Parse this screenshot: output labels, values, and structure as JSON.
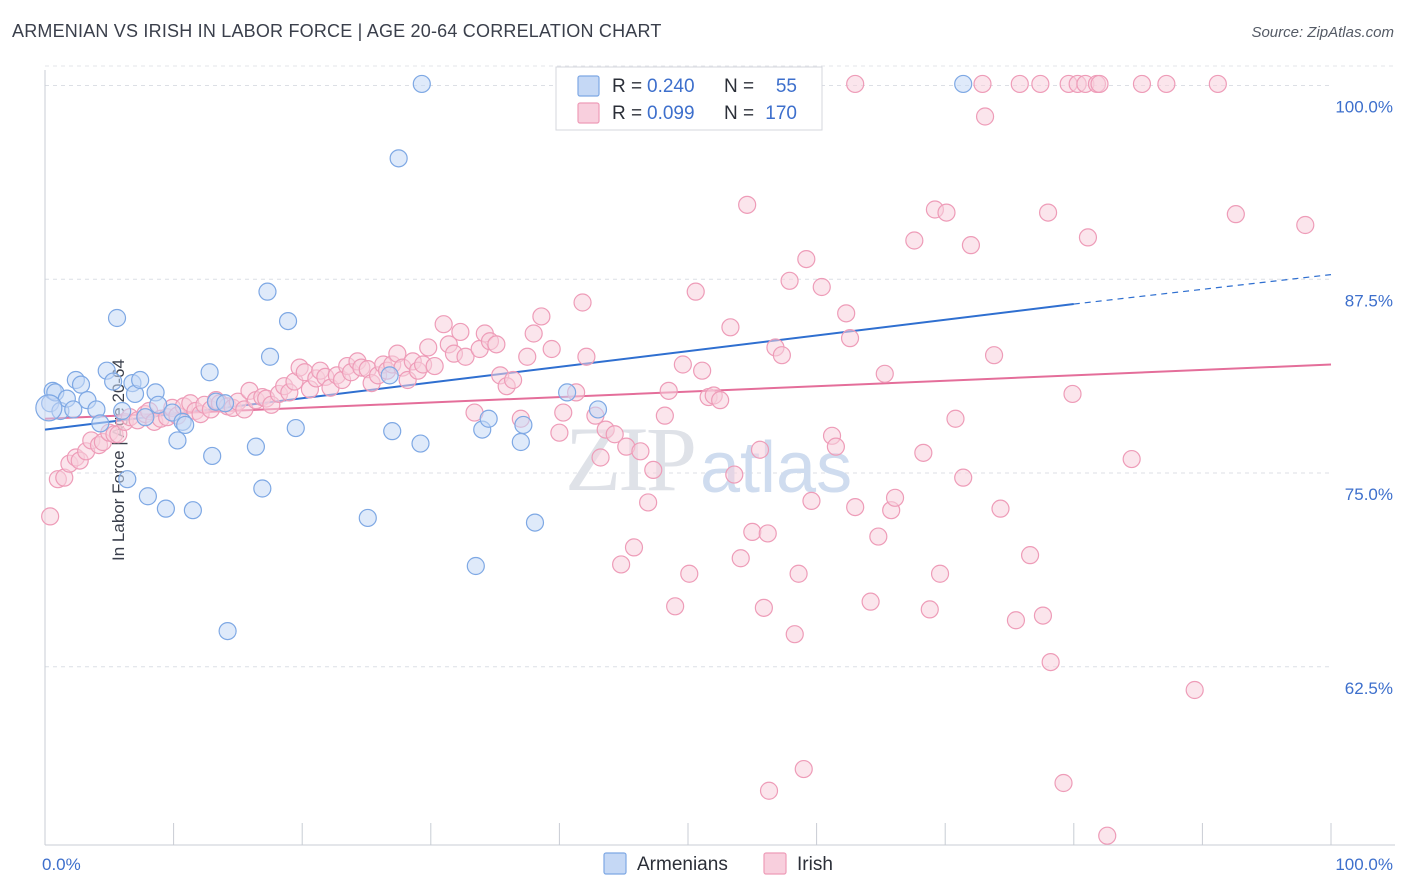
{
  "header": {
    "title": "ARMENIAN VS IRISH IN LABOR FORCE | AGE 20-64 CORRELATION CHART",
    "source": "Source: ZipAtlas.com"
  },
  "watermark": "ZIPatlas",
  "chart_data": {
    "type": "scatter",
    "title": "ARMENIAN VS IRISH IN LABOR FORCE | AGE 20-64 CORRELATION CHART",
    "xlabel": "",
    "ylabel": "In Labor Force | Age 20-64",
    "xlim": [
      0,
      100
    ],
    "ylim": [
      51,
      101
    ],
    "x_tick_labels": [
      "0.0%",
      "100.0%"
    ],
    "y_ticks": [
      62.5,
      75.0,
      87.5,
      100.0
    ],
    "y_tick_labels": [
      "62.5%",
      "75.0%",
      "87.5%",
      "100.0%"
    ],
    "grid": true,
    "legend": {
      "position": "top-center",
      "rows": [
        {
          "r_label": "R =",
          "r_value": "0.240",
          "n_label": "N =",
          "n_value": "55"
        },
        {
          "r_label": "R =",
          "r_value": "0.099",
          "n_label": "N =",
          "n_value": "170"
        }
      ]
    },
    "series": [
      {
        "name": "Armenians",
        "color": "#7ea8e4",
        "fill": "#c5d8f5",
        "line_color": "#2f6fd0",
        "trend": {
          "x0": 0,
          "y0": 77.8,
          "x1": 80,
          "y1": 85.9,
          "dash_to_x": 100,
          "dash_to_y": 87.8
        },
        "points": [
          [
            0.4,
            79.5
          ],
          [
            0.6,
            80.3
          ],
          [
            0.8,
            80.2
          ],
          [
            1.2,
            79.0
          ],
          [
            1.7,
            79.8
          ],
          [
            2.2,
            79.1
          ],
          [
            2.4,
            81.0
          ],
          [
            2.8,
            80.7
          ],
          [
            3.3,
            79.7
          ],
          [
            4.0,
            79.1
          ],
          [
            4.3,
            78.2
          ],
          [
            4.8,
            81.6
          ],
          [
            5.3,
            80.9
          ],
          [
            5.6,
            85.0
          ],
          [
            6.0,
            79.0
          ],
          [
            6.4,
            74.6
          ],
          [
            6.8,
            80.8
          ],
          [
            7.0,
            80.1
          ],
          [
            7.4,
            81.0
          ],
          [
            7.8,
            78.6
          ],
          [
            8.0,
            73.5
          ],
          [
            8.6,
            80.2
          ],
          [
            8.8,
            79.4
          ],
          [
            9.4,
            72.7
          ],
          [
            9.9,
            78.9
          ],
          [
            10.3,
            77.1
          ],
          [
            10.7,
            78.3
          ],
          [
            10.9,
            78.1
          ],
          [
            11.5,
            72.6
          ],
          [
            12.8,
            81.5
          ],
          [
            13.0,
            76.1
          ],
          [
            13.3,
            79.6
          ],
          [
            14.0,
            79.5
          ],
          [
            14.2,
            64.8
          ],
          [
            16.4,
            76.7
          ],
          [
            16.9,
            74.0
          ],
          [
            17.3,
            86.7
          ],
          [
            17.5,
            82.5
          ],
          [
            18.9,
            84.8
          ],
          [
            19.5,
            77.9
          ],
          [
            25.1,
            72.1
          ],
          [
            26.8,
            81.3
          ],
          [
            27.0,
            77.7
          ],
          [
            27.5,
            95.3
          ],
          [
            29.2,
            76.9
          ],
          [
            29.3,
            100.1
          ],
          [
            33.5,
            69.0
          ],
          [
            34.0,
            77.8
          ],
          [
            34.5,
            78.5
          ],
          [
            37.0,
            77.0
          ],
          [
            37.2,
            78.1
          ],
          [
            38.1,
            71.8
          ],
          [
            40.6,
            80.2
          ],
          [
            43.0,
            79.1
          ],
          [
            71.4,
            100.1
          ]
        ]
      },
      {
        "name": "Irish",
        "color": "#ee9cb8",
        "fill": "#f8cfdd",
        "line_color": "#e46e9a",
        "trend": {
          "x0": 0,
          "y0": 78.5,
          "x1": 100,
          "y1": 82.0
        },
        "points": [
          [
            0.4,
            72.2
          ],
          [
            1.0,
            74.6
          ],
          [
            1.5,
            74.7
          ],
          [
            1.9,
            75.6
          ],
          [
            2.4,
            76.0
          ],
          [
            2.7,
            75.8
          ],
          [
            3.2,
            76.4
          ],
          [
            3.6,
            77.1
          ],
          [
            4.2,
            76.8
          ],
          [
            4.5,
            77.0
          ],
          [
            5.0,
            77.6
          ],
          [
            5.4,
            77.5
          ],
          [
            5.7,
            77.5
          ],
          [
            6.2,
            78.3
          ],
          [
            6.6,
            78.6
          ],
          [
            7.2,
            78.4
          ],
          [
            7.8,
            78.8
          ],
          [
            8.1,
            79.0
          ],
          [
            8.5,
            78.3
          ],
          [
            9.0,
            78.5
          ],
          [
            9.5,
            78.6
          ],
          [
            9.9,
            79.2
          ],
          [
            10.3,
            78.7
          ],
          [
            10.8,
            79.3
          ],
          [
            11.3,
            79.5
          ],
          [
            11.7,
            79.0
          ],
          [
            12.1,
            78.8
          ],
          [
            12.4,
            79.4
          ],
          [
            12.9,
            79.1
          ],
          [
            13.3,
            79.7
          ],
          [
            13.6,
            79.5
          ],
          [
            14.2,
            79.3
          ],
          [
            14.6,
            79.2
          ],
          [
            15.0,
            79.6
          ],
          [
            15.5,
            79.1
          ],
          [
            15.9,
            80.3
          ],
          [
            16.4,
            79.7
          ],
          [
            16.9,
            79.9
          ],
          [
            17.2,
            79.8
          ],
          [
            17.6,
            79.4
          ],
          [
            18.2,
            80.1
          ],
          [
            18.6,
            80.6
          ],
          [
            19.0,
            80.2
          ],
          [
            19.4,
            80.9
          ],
          [
            19.8,
            81.8
          ],
          [
            20.2,
            81.5
          ],
          [
            20.6,
            80.4
          ],
          [
            21.1,
            81.1
          ],
          [
            21.4,
            81.6
          ],
          [
            21.8,
            81.2
          ],
          [
            22.2,
            80.5
          ],
          [
            22.7,
            81.3
          ],
          [
            23.1,
            81.0
          ],
          [
            23.5,
            81.9
          ],
          [
            23.8,
            81.5
          ],
          [
            24.3,
            82.2
          ],
          [
            24.6,
            81.8
          ],
          [
            25.1,
            81.7
          ],
          [
            25.4,
            80.8
          ],
          [
            25.9,
            81.3
          ],
          [
            26.3,
            82.0
          ],
          [
            26.6,
            81.6
          ],
          [
            27.0,
            82.0
          ],
          [
            27.4,
            82.7
          ],
          [
            27.8,
            81.8
          ],
          [
            28.2,
            81.0
          ],
          [
            28.6,
            82.2
          ],
          [
            29.0,
            81.6
          ],
          [
            29.4,
            82.0
          ],
          [
            29.8,
            83.1
          ],
          [
            30.3,
            81.9
          ],
          [
            31.0,
            84.6
          ],
          [
            31.4,
            83.3
          ],
          [
            31.8,
            82.7
          ],
          [
            32.3,
            84.1
          ],
          [
            32.7,
            82.5
          ],
          [
            33.4,
            78.9
          ],
          [
            33.8,
            83.0
          ],
          [
            34.2,
            84.0
          ],
          [
            34.6,
            83.5
          ],
          [
            35.1,
            83.3
          ],
          [
            35.4,
            81.3
          ],
          [
            35.9,
            80.6
          ],
          [
            36.4,
            81.0
          ],
          [
            37.0,
            78.5
          ],
          [
            37.5,
            82.5
          ],
          [
            38.0,
            84.0
          ],
          [
            38.6,
            85.1
          ],
          [
            39.4,
            83.0
          ],
          [
            40.0,
            77.6
          ],
          [
            40.3,
            78.9
          ],
          [
            41.3,
            80.2
          ],
          [
            41.8,
            86.0
          ],
          [
            42.1,
            82.5
          ],
          [
            42.8,
            78.7
          ],
          [
            43.2,
            76.0
          ],
          [
            43.6,
            77.8
          ],
          [
            44.3,
            77.5
          ],
          [
            44.8,
            69.1
          ],
          [
            45.2,
            76.7
          ],
          [
            45.8,
            70.2
          ],
          [
            46.3,
            76.4
          ],
          [
            46.9,
            73.1
          ],
          [
            47.3,
            75.2
          ],
          [
            48.2,
            78.7
          ],
          [
            48.5,
            80.3
          ],
          [
            49.0,
            66.4
          ],
          [
            49.6,
            82.0
          ],
          [
            50.1,
            68.5
          ],
          [
            50.6,
            86.7
          ],
          [
            51.1,
            81.6
          ],
          [
            51.6,
            79.9
          ],
          [
            52.0,
            80.0
          ],
          [
            52.5,
            79.7
          ],
          [
            53.3,
            84.4
          ],
          [
            53.6,
            74.9
          ],
          [
            54.1,
            69.5
          ],
          [
            54.6,
            92.3
          ],
          [
            55.0,
            71.2
          ],
          [
            55.6,
            76.5
          ],
          [
            55.9,
            66.3
          ],
          [
            56.2,
            71.1
          ],
          [
            56.8,
            83.1
          ],
          [
            57.3,
            82.6
          ],
          [
            57.9,
            87.4
          ],
          [
            58.3,
            64.6
          ],
          [
            58.6,
            68.5
          ],
          [
            59.2,
            88.8
          ],
          [
            59.6,
            73.2
          ],
          [
            60.4,
            87.0
          ],
          [
            61.2,
            77.4
          ],
          [
            61.5,
            76.7
          ],
          [
            62.3,
            85.3
          ],
          [
            62.6,
            83.7
          ],
          [
            63.0,
            72.8
          ],
          [
            64.2,
            66.7
          ],
          [
            64.8,
            70.9
          ],
          [
            65.3,
            81.4
          ],
          [
            65.8,
            72.6
          ],
          [
            66.1,
            73.4
          ],
          [
            67.6,
            90.0
          ],
          [
            68.3,
            76.3
          ],
          [
            68.8,
            66.2
          ],
          [
            69.2,
            92.0
          ],
          [
            69.6,
            68.5
          ],
          [
            70.1,
            91.8
          ],
          [
            70.8,
            78.5
          ],
          [
            71.4,
            74.7
          ],
          [
            72.0,
            89.7
          ],
          [
            72.9,
            100.1
          ],
          [
            73.1,
            98.0
          ],
          [
            73.8,
            82.6
          ],
          [
            74.3,
            72.7
          ],
          [
            75.5,
            65.5
          ],
          [
            75.8,
            100.1
          ],
          [
            76.6,
            69.7
          ],
          [
            77.4,
            100.1
          ],
          [
            77.6,
            65.8
          ],
          [
            78.0,
            91.8
          ],
          [
            78.2,
            62.8
          ],
          [
            79.2,
            55.0
          ],
          [
            79.6,
            100.1
          ],
          [
            79.9,
            80.1
          ],
          [
            80.3,
            100.1
          ],
          [
            80.9,
            100.1
          ],
          [
            81.1,
            90.2
          ],
          [
            81.8,
            100.1
          ],
          [
            82.0,
            100.1
          ],
          [
            82.6,
            51.6
          ],
          [
            84.5,
            75.9
          ],
          [
            85.3,
            100.1
          ],
          [
            87.2,
            100.1
          ],
          [
            89.4,
            61.0
          ],
          [
            91.2,
            100.1
          ],
          [
            92.6,
            91.7
          ],
          [
            98.0,
            91.0
          ]
        ]
      }
    ],
    "extra_points": {
      "Armenians_large_left": [
        0.3,
        79.2
      ],
      "Irish_edge": [
        [
          56.3,
          54.5
        ],
        [
          63.0,
          100.1
        ],
        [
          59.0,
          55.9
        ]
      ]
    }
  }
}
